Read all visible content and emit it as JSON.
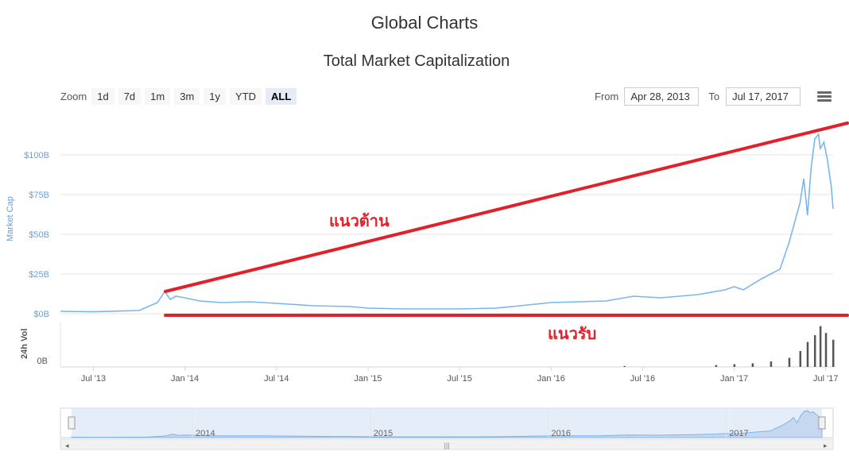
{
  "header": {
    "page_title": "Global Charts",
    "chart_title": "Total Market Capitalization"
  },
  "toolbar": {
    "zoom_label": "Zoom",
    "zoom_buttons": [
      "1d",
      "7d",
      "1m",
      "3m",
      "1y",
      "YTD",
      "ALL"
    ],
    "active_zoom": "ALL",
    "from_label": "From",
    "from_value": "Apr 28, 2013",
    "to_label": "To",
    "to_value": "Jul 17, 2017",
    "menu_icon": "hamburger-menu-icon"
  },
  "annotations": {
    "resistance_label": "แนวต้าน",
    "support_label": "แนวรับ",
    "line_color": "#e0202a"
  },
  "colors": {
    "series": "#7cb5ec",
    "volume": "#555555",
    "navigator_fill": "#d9e6f7"
  },
  "chart_data": {
    "type": "area",
    "title": "Total Market Capitalization",
    "ylabel": "Market Cap",
    "y_ticks": [
      "$0B",
      "$25B",
      "$50B",
      "$75B",
      "$100B"
    ],
    "ylim": [
      0,
      125
    ],
    "x_ticks": [
      "Jul '13",
      "Jan '14",
      "Jul '14",
      "Jan '15",
      "Jul '15",
      "Jan '16",
      "Jul '16",
      "Jan '17",
      "Jul '17"
    ],
    "xlim": [
      2013.32,
      2017.54
    ],
    "series": [
      {
        "name": "Market Cap",
        "x": [
          2013.32,
          2013.5,
          2013.75,
          2013.85,
          2013.89,
          2013.92,
          2013.95,
          2014.0,
          2014.08,
          2014.2,
          2014.35,
          2014.5,
          2014.7,
          2014.9,
          2015.0,
          2015.2,
          2015.5,
          2015.7,
          2015.83,
          2016.0,
          2016.3,
          2016.45,
          2016.6,
          2016.8,
          2016.95,
          2017.0,
          2017.05,
          2017.15,
          2017.25,
          2017.3,
          2017.36,
          2017.38,
          2017.4,
          2017.42,
          2017.44,
          2017.46,
          2017.47,
          2017.49,
          2017.51,
          2017.53,
          2017.54
        ],
        "values": [
          1.5,
          1.2,
          2.0,
          7.0,
          14.0,
          9.0,
          11.0,
          10.0,
          8.0,
          7.0,
          7.5,
          6.5,
          5.0,
          4.5,
          3.5,
          3.0,
          3.0,
          3.5,
          5.0,
          7.0,
          8.0,
          11.0,
          10.0,
          12.0,
          15.0,
          17.0,
          15.0,
          22.0,
          28.0,
          45.0,
          70.0,
          85.0,
          62.0,
          92.0,
          110.0,
          113.0,
          104.0,
          108.0,
          96.0,
          80.0,
          66.0
        ]
      },
      {
        "name": "24h Vol",
        "ylabel": "24h Vol",
        "y_ticks": [
          "0B"
        ],
        "x": [
          2016.4,
          2016.9,
          2017.0,
          2017.1,
          2017.2,
          2017.3,
          2017.36,
          2017.4,
          2017.44,
          2017.47,
          2017.5,
          2017.54
        ],
        "values": [
          0.02,
          0.04,
          0.06,
          0.08,
          0.12,
          0.2,
          0.35,
          0.55,
          0.7,
          0.9,
          0.75,
          0.6
        ]
      }
    ],
    "navigator": {
      "x_ticks": [
        "2014",
        "2015",
        "2016",
        "2017"
      ]
    },
    "trend_lines": [
      {
        "label": "แนวต้าน",
        "from": [
          2013.85,
          14.0
        ],
        "to": [
          2017.54,
          120.0
        ]
      },
      {
        "label": "แนวรับ",
        "from": [
          2013.85,
          0.5
        ],
        "to": [
          2017.54,
          0.5
        ]
      }
    ],
    "grid": true,
    "legend": "none"
  }
}
